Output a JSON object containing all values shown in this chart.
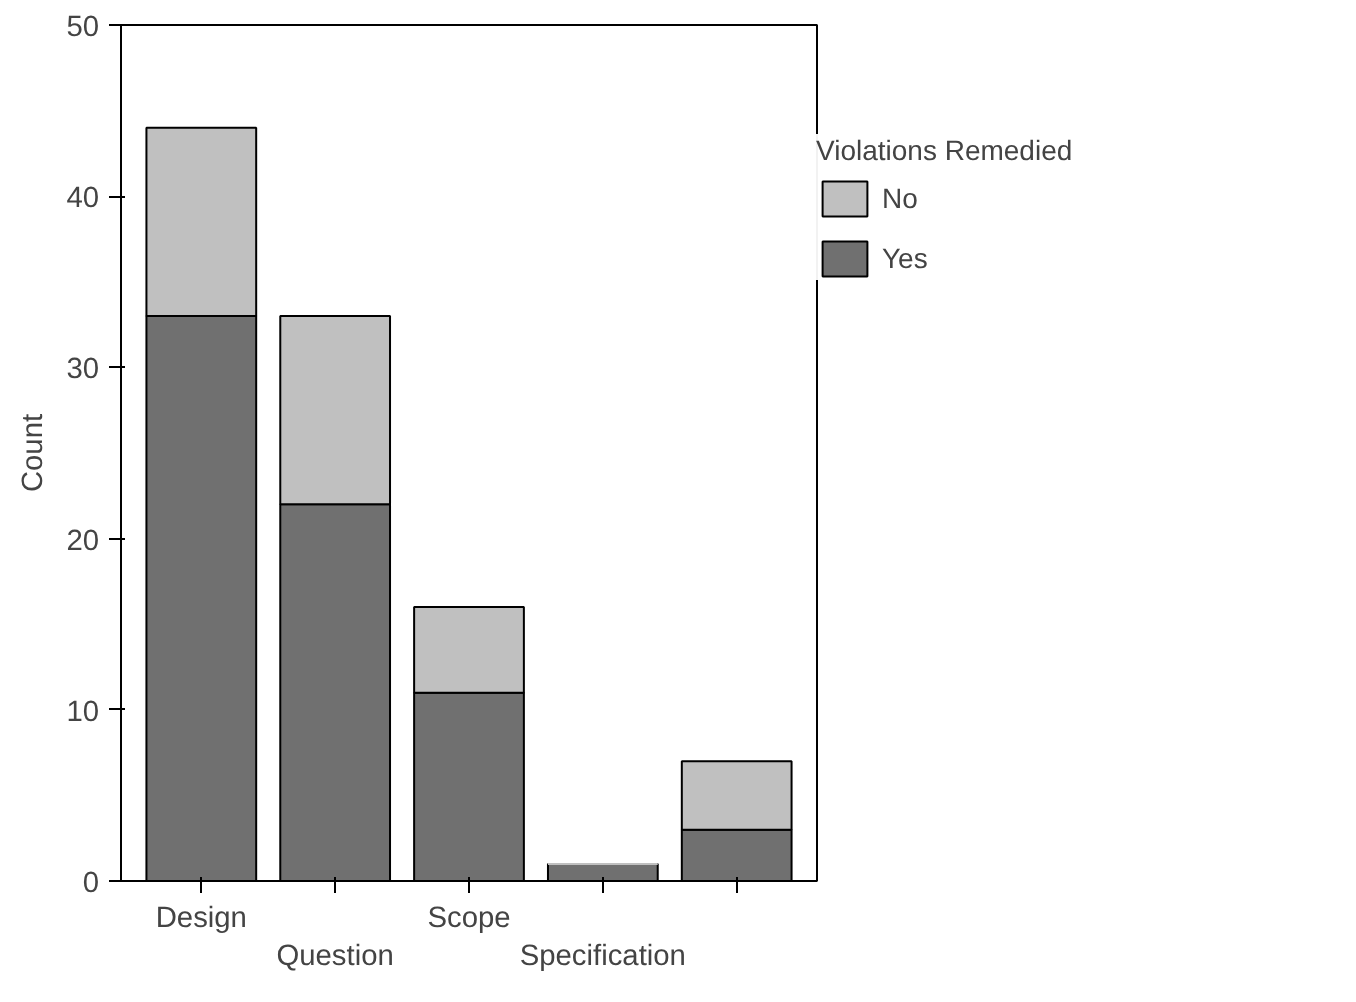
{
  "chart_data": {
    "type": "bar",
    "stacked": true,
    "ylabel": "Count",
    "legend_title": "Violations Remedied",
    "legend": "right",
    "categories": [
      "Design",
      "Question",
      "Scope",
      "Specification",
      null
    ],
    "series": [
      {
        "name": "Yes",
        "color": "#707070",
        "values": [
          33,
          22,
          11,
          1,
          3
        ]
      },
      {
        "name": "No",
        "color": "#c0c0c0",
        "values": [
          11,
          11,
          5,
          0,
          4
        ]
      }
    ],
    "ylim": [
      0,
      50
    ],
    "yticks": [
      0,
      10,
      20,
      30,
      40,
      50
    ],
    "grid": false
  }
}
